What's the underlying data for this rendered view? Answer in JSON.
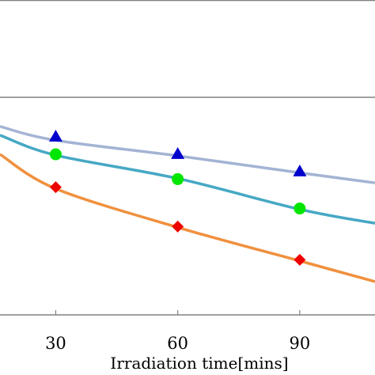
{
  "chart_data": {
    "type": "line",
    "xlabel": "Irradiation time[mins]",
    "ylabel": "",
    "x_ticks": [
      30,
      60,
      90
    ],
    "xlim": [
      16.3,
      108.5
    ],
    "ylim": [
      0,
      1
    ],
    "grid": false,
    "series": [
      {
        "color": "#a3b4d3",
        "marker": "triangle",
        "marker_color": "#0000cc",
        "curve_x": [
          16.3,
          30,
          60,
          90,
          108.5
        ],
        "curve_y": [
          0.866,
          0.802,
          0.731,
          0.653,
          0.607
        ],
        "marker_x": [
          30,
          60,
          90
        ],
        "marker_y": [
          0.82,
          0.74,
          0.66
        ]
      },
      {
        "color": "#46a8c4",
        "marker": "circle",
        "marker_color": "#00e600",
        "curve_x": [
          16.3,
          30,
          60,
          90,
          108.5
        ],
        "curve_y": [
          0.826,
          0.734,
          0.627,
          0.485,
          0.421
        ],
        "marker_x": [
          30,
          60,
          90
        ],
        "marker_y": [
          0.738,
          0.624,
          0.489
        ]
      },
      {
        "color": "#f0903e",
        "marker": "diamond",
        "marker_color": "#ee0000",
        "curve_x": [
          16.3,
          30,
          60,
          90,
          108.5
        ],
        "curve_y": [
          0.738,
          0.58,
          0.402,
          0.248,
          0.153
        ],
        "marker_x": [
          30,
          60,
          90
        ],
        "marker_y": [
          0.587,
          0.406,
          0.253
        ]
      }
    ]
  }
}
